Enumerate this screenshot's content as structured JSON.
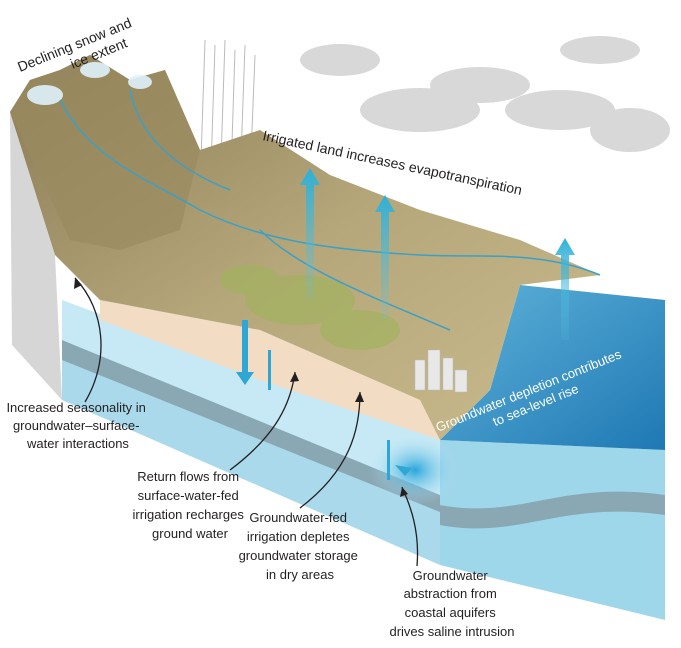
{
  "labels": [
    {
      "lines": [
        "Declining snow and",
        "ice extent"
      ]
    },
    {
      "lines": [
        "Irrigated land increases evapotranspiration"
      ]
    },
    {
      "lines": [
        "Groundwater depletion contributes",
        "to sea-level rise"
      ]
    },
    {
      "lines": [
        "Increased seasonality in",
        "groundwater–surface-",
        "water interactions"
      ]
    },
    {
      "lines": [
        "Return flows from",
        "surface-water-fed",
        "irrigation recharges",
        "ground water"
      ]
    },
    {
      "lines": [
        "Groundwater-fed",
        "irrigation depletes",
        "groundwater storage",
        "in dry areas"
      ]
    },
    {
      "lines": [
        "Groundwater",
        "abstraction from",
        "coastal aquifers",
        "drives saline intrusion"
      ]
    }
  ]
}
